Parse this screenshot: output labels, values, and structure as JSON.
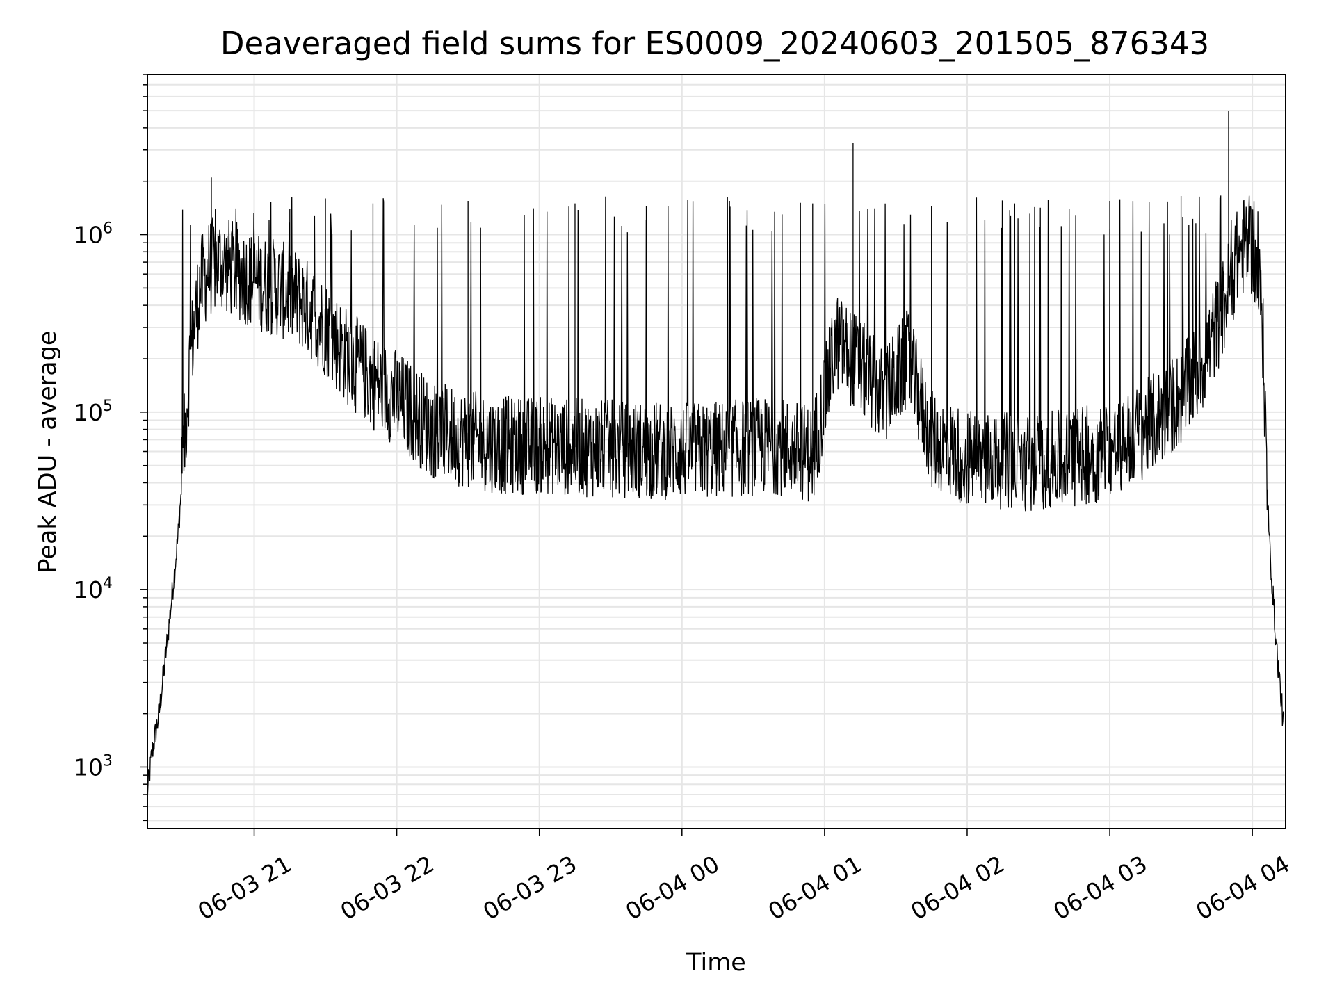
{
  "chart_data": {
    "type": "line",
    "title": "Deaveraged field sums for ES0009_20240603_201505_876343",
    "xlabel": "Time",
    "ylabel": "Peak ADU - average",
    "x_scale": "time",
    "y_scale": "log",
    "xlim": [
      "2024-06-03 20:15:05",
      "2024-06-04 04:14:00"
    ],
    "ylim": [
      450,
      8000000
    ],
    "x_ticks": [
      {
        "value": "2024-06-03 21:00",
        "label": "06-03 21"
      },
      {
        "value": "2024-06-03 22:00",
        "label": "06-03 22"
      },
      {
        "value": "2024-06-03 23:00",
        "label": "06-03 23"
      },
      {
        "value": "2024-06-04 00:00",
        "label": "06-04 00"
      },
      {
        "value": "2024-06-04 01:00",
        "label": "06-04 01"
      },
      {
        "value": "2024-06-04 02:00",
        "label": "06-04 02"
      },
      {
        "value": "2024-06-04 03:00",
        "label": "06-04 03"
      },
      {
        "value": "2024-06-04 04:00",
        "label": "06-04 04"
      }
    ],
    "y_ticks": [
      {
        "value": 1000,
        "base": "10",
        "exp": "3"
      },
      {
        "value": 10000,
        "base": "10",
        "exp": "4"
      },
      {
        "value": 100000,
        "base": "10",
        "exp": "5"
      },
      {
        "value": 1000000,
        "base": "10",
        "exp": "6"
      }
    ],
    "grid": true,
    "line_color": "#000000",
    "grid_color": "#e6e6e6",
    "series": [
      {
        "x": [
          "2024-06-03 20:15",
          "2024-06-03 20:17",
          "2024-06-03 20:20",
          "2024-06-03 20:24",
          "2024-06-03 20:28",
          "2024-06-03 20:33",
          "2024-06-03 20:37",
          "2024-06-03 20:41",
          "2024-06-03 20:46",
          "2024-06-03 20:50",
          "2024-06-03 20:55",
          "2024-06-03 21:00",
          "2024-06-03 21:10",
          "2024-06-03 21:20",
          "2024-06-03 21:30",
          "2024-06-03 21:40",
          "2024-06-03 21:50",
          "2024-06-03 22:00",
          "2024-06-03 22:15",
          "2024-06-03 22:30",
          "2024-06-03 22:45",
          "2024-06-03 23:00",
          "2024-06-03 23:30",
          "2024-06-04 00:00",
          "2024-06-04 00:20",
          "2024-06-04 00:40",
          "2024-06-04 00:55",
          "2024-06-04 01:05",
          "2024-06-04 01:15",
          "2024-06-04 01:25",
          "2024-06-04 01:35",
          "2024-06-04 01:45",
          "2024-06-04 02:00",
          "2024-06-04 02:30",
          "2024-06-04 03:00",
          "2024-06-04 03:15",
          "2024-06-04 03:30",
          "2024-06-04 03:40",
          "2024-06-04 03:48",
          "2024-06-04 03:53",
          "2024-06-04 03:57",
          "2024-06-04 04:00",
          "2024-06-04 04:04",
          "2024-06-04 04:07",
          "2024-06-04 04:10",
          "2024-06-04 04:13"
        ],
        "y": [
          700,
          1200,
          2000,
          6000,
          20000,
          200000,
          500000,
          650000,
          700000,
          650000,
          600000,
          550000,
          500000,
          420000,
          300000,
          200000,
          150000,
          120000,
          80000,
          70000,
          65000,
          65000,
          62000,
          60000,
          62000,
          65000,
          58000,
          250000,
          180000,
          120000,
          200000,
          70000,
          55000,
          52000,
          60000,
          80000,
          120000,
          200000,
          400000,
          700000,
          900000,
          850000,
          400000,
          20000,
          5000,
          1800
        ],
        "spikes": [
          {
            "x": "2024-06-03 20:42",
            "y": 2100000
          },
          {
            "x": "2024-06-03 21:15",
            "y": 1400000
          },
          {
            "x": "2024-06-03 21:30",
            "y": 1600000
          },
          {
            "x": "2024-06-03 21:50",
            "y": 1500000
          },
          {
            "x": "2024-06-03 22:30",
            "y": 1550000
          },
          {
            "x": "2024-06-03 23:15",
            "y": 1500000
          },
          {
            "x": "2024-06-03 23:45",
            "y": 1450000
          },
          {
            "x": "2024-06-04 00:20",
            "y": 1550000
          },
          {
            "x": "2024-06-04 00:55",
            "y": 1500000
          },
          {
            "x": "2024-06-04 01:12",
            "y": 3300000
          },
          {
            "x": "2024-06-04 01:45",
            "y": 1450000
          },
          {
            "x": "2024-06-04 02:20",
            "y": 1500000
          },
          {
            "x": "2024-06-04 03:00",
            "y": 1550000
          },
          {
            "x": "2024-06-04 03:30",
            "y": 1650000
          },
          {
            "x": "2024-06-04 03:50",
            "y": 5000000
          }
        ]
      }
    ]
  }
}
